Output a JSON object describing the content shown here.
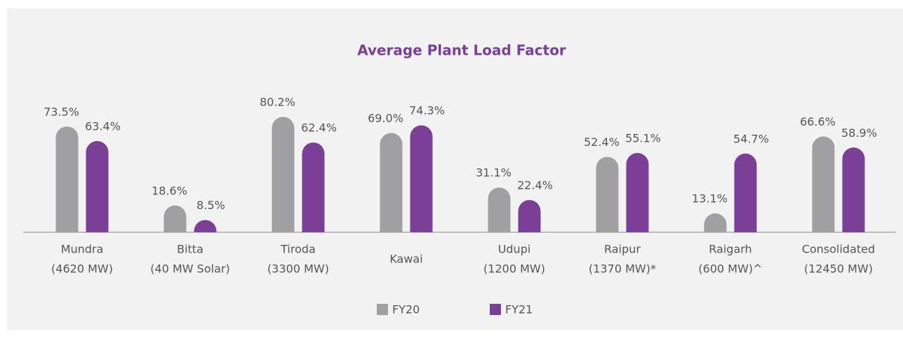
{
  "chart_data": {
    "type": "bar",
    "title": "Average Plant Load Factor",
    "categories": [
      [
        "Mundra",
        "(4620 MW)"
      ],
      [
        "Bitta",
        "(40 MW Solar)"
      ],
      [
        "Tiroda",
        "(3300 MW)"
      ],
      [
        "Kawai"
      ],
      [
        "Udupi",
        "(1200 MW)"
      ],
      [
        "Raipur",
        "(1370 MW)*"
      ],
      [
        "Raigarh",
        "(600 MW)^"
      ],
      [
        "Consolidated",
        "(12450 MW)"
      ]
    ],
    "series": [
      {
        "name": "FY20",
        "color": "#a0a0a2",
        "values": [
          73.5,
          18.6,
          80.2,
          69.0,
          31.1,
          52.4,
          13.1,
          66.6
        ],
        "value_labels": [
          "73.5%",
          "18.6%",
          "80.2%",
          "69.0%",
          "31.1%",
          "52.4%",
          "13.1%",
          "66.6%"
        ]
      },
      {
        "name": "FY21",
        "color": "#7b3f98",
        "values": [
          63.4,
          8.5,
          62.4,
          74.3,
          22.4,
          55.1,
          54.7,
          58.9
        ],
        "value_labels": [
          "63.4%",
          "8.5%",
          "62.4%",
          "74.3%",
          "22.4%",
          "55.1%",
          "54.7%",
          "58.9%"
        ]
      }
    ],
    "ylim": [
      0,
      100
    ]
  }
}
